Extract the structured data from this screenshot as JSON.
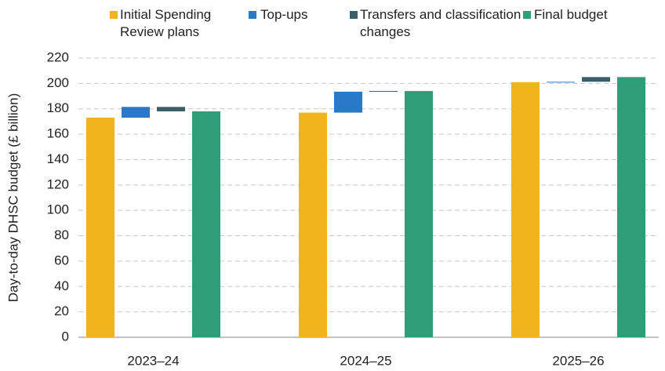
{
  "chart_data": {
    "type": "waterfall",
    "y_label": "Day-to-day DHSC budget (£ billion)",
    "categories": [
      "2023–24",
      "2024–25",
      "2025–26"
    ],
    "series": [
      {
        "name": "Initial Spending Review plans",
        "color": "#f0b41c",
        "values": [
          173,
          177,
          201
        ]
      },
      {
        "name": "Top-ups",
        "color": "#2979c8",
        "values": [
          8.5,
          16.5,
          0.3
        ]
      },
      {
        "name": "Transfers and classification changes",
        "color": "#3b5f68",
        "values": [
          -3.5,
          0.5,
          3.7
        ]
      },
      {
        "name": "Final budget",
        "color": "#2e9e78",
        "values": [
          178,
          194,
          205
        ]
      }
    ],
    "ylim": [
      0,
      220
    ],
    "yticks": [
      0,
      20,
      40,
      60,
      80,
      100,
      120,
      140,
      160,
      180,
      200,
      220
    ],
    "grid": true
  }
}
